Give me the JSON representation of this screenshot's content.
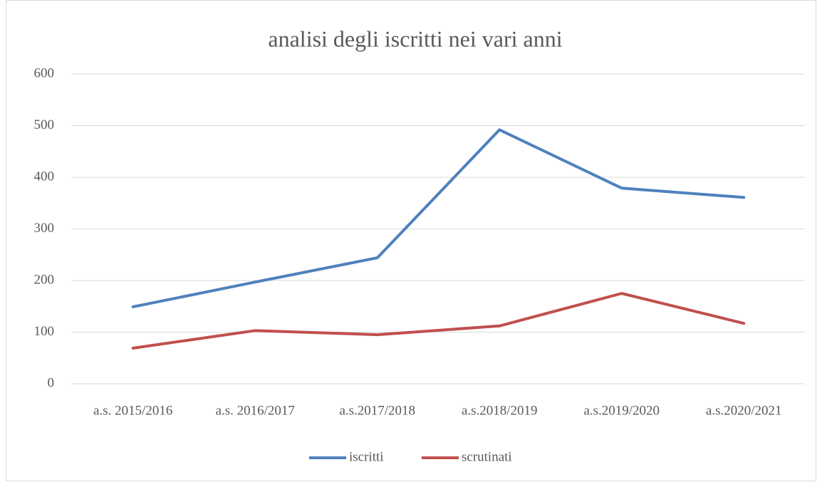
{
  "chart_data": {
    "type": "line",
    "title": "analisi degli iscritti nei vari anni",
    "categories": [
      "a.s. 2015/2016",
      "a.s. 2016/2017",
      "a.s.2017/2018",
      "a.s.2018/2019",
      "a.s.2019/2020",
      "a.s.2020/2021"
    ],
    "series": [
      {
        "name": "iscritti",
        "color": "#4f81bd",
        "values": [
          149,
          197,
          244,
          492,
          379,
          361
        ]
      },
      {
        "name": "scrutinati",
        "color": "#c0504d",
        "values": [
          69,
          103,
          95,
          112,
          175,
          117
        ]
      }
    ],
    "ylim": [
      0,
      600
    ],
    "yticks": [
      0,
      100,
      200,
      300,
      400,
      500,
      600
    ],
    "grid": true,
    "legend": "bottom"
  }
}
